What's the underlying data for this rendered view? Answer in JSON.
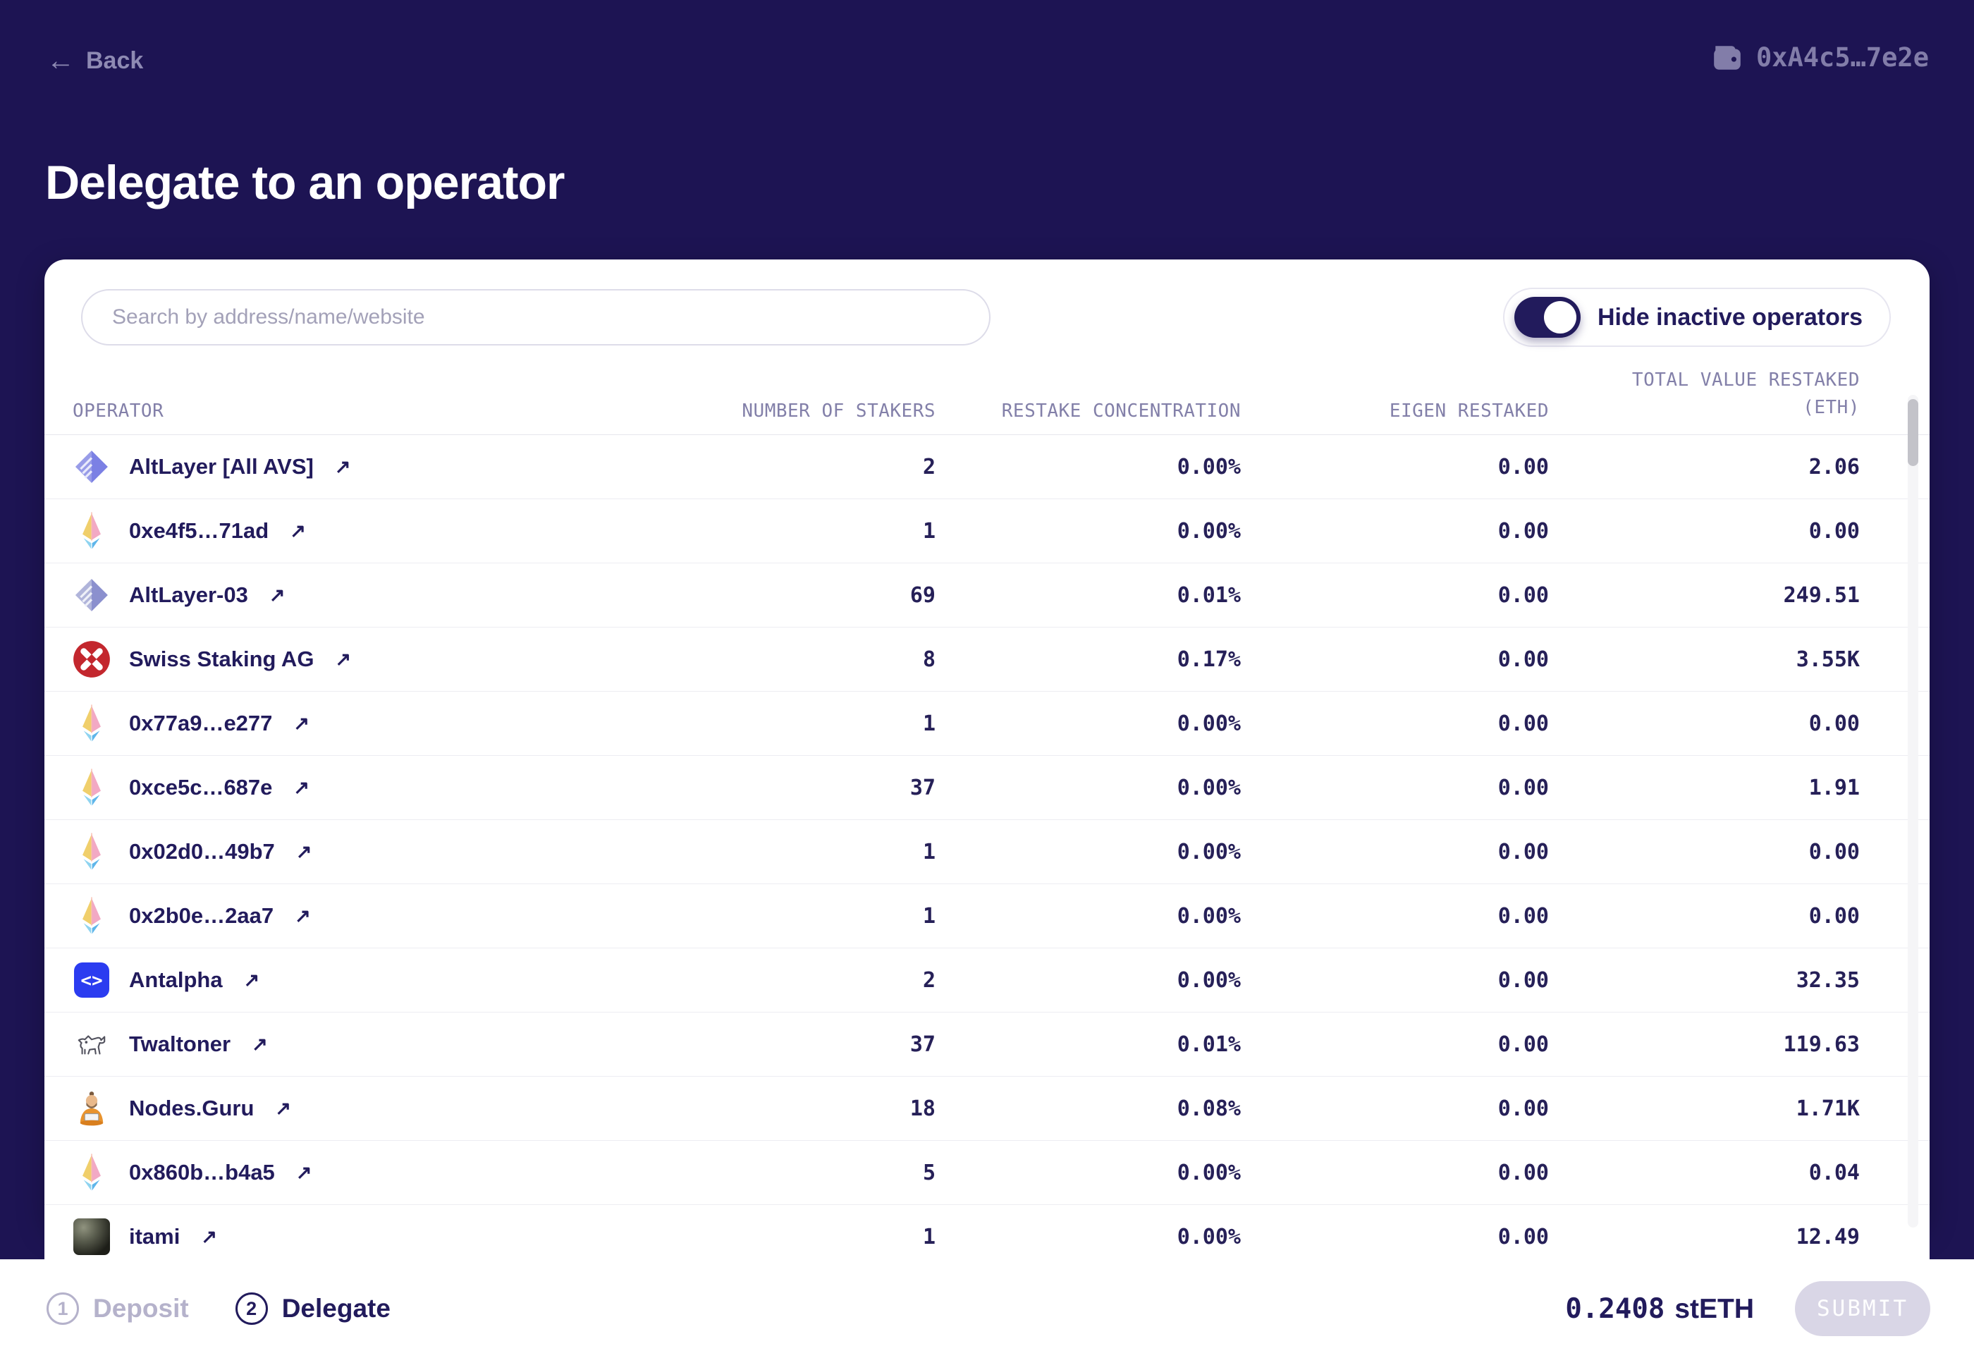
{
  "topbar": {
    "back_label": "Back",
    "wallet_address": "0xA4c5…7e2e"
  },
  "page_title": "Delegate to an operator",
  "search": {
    "placeholder": "Search by address/name/website"
  },
  "toggle": {
    "label": "Hide inactive operators",
    "enabled": true
  },
  "table": {
    "columns": [
      {
        "id": "operator",
        "label": "OPERATOR",
        "align": "left"
      },
      {
        "id": "stakers",
        "label": "NUMBER OF STAKERS",
        "align": "right"
      },
      {
        "id": "concentration",
        "label": "RESTAKE CONCENTRATION",
        "align": "right"
      },
      {
        "id": "eigen",
        "label": "EIGEN RESTAKED",
        "align": "right"
      },
      {
        "id": "total",
        "label": "TOTAL VALUE RESTAKED",
        "sub_label": "(ETH)",
        "align": "right"
      }
    ],
    "rows": [
      {
        "name": "AltLayer [All AVS]",
        "icon": "altlayer-icon",
        "stakers": "2",
        "concentration": "0.00%",
        "eigen": "0.00",
        "total": "2.06"
      },
      {
        "name": "0xe4f5…71ad",
        "icon": "eth-diamond-icon",
        "stakers": "1",
        "concentration": "0.00%",
        "eigen": "0.00",
        "total": "0.00"
      },
      {
        "name": "AltLayer-03",
        "icon": "altlayer-muted-icon",
        "stakers": "69",
        "concentration": "0.01%",
        "eigen": "0.00",
        "total": "249.51"
      },
      {
        "name": "Swiss Staking AG",
        "icon": "swiss-staking-icon",
        "stakers": "8",
        "concentration": "0.17%",
        "eigen": "0.00",
        "total": "3.55K"
      },
      {
        "name": "0x77a9…e277",
        "icon": "eth-diamond-icon",
        "stakers": "1",
        "concentration": "0.00%",
        "eigen": "0.00",
        "total": "0.00"
      },
      {
        "name": "0xce5c…687e",
        "icon": "eth-diamond-icon",
        "stakers": "37",
        "concentration": "0.00%",
        "eigen": "0.00",
        "total": "1.91"
      },
      {
        "name": "0x02d0…49b7",
        "icon": "eth-diamond-icon",
        "stakers": "1",
        "concentration": "0.00%",
        "eigen": "0.00",
        "total": "0.00"
      },
      {
        "name": "0x2b0e…2aa7",
        "icon": "eth-diamond-icon",
        "stakers": "1",
        "concentration": "0.00%",
        "eigen": "0.00",
        "total": "0.00"
      },
      {
        "name": "Antalpha",
        "icon": "antalpha-icon",
        "stakers": "2",
        "concentration": "0.00%",
        "eigen": "0.00",
        "total": "32.35"
      },
      {
        "name": "Twaltoner",
        "icon": "dog-lineart-icon",
        "stakers": "37",
        "concentration": "0.01%",
        "eigen": "0.00",
        "total": "119.63"
      },
      {
        "name": "Nodes.Guru",
        "icon": "guru-icon",
        "stakers": "18",
        "concentration": "0.08%",
        "eigen": "0.00",
        "total": "1.71K"
      },
      {
        "name": "0x860b…b4a5",
        "icon": "eth-diamond-icon",
        "stakers": "5",
        "concentration": "0.00%",
        "eigen": "0.00",
        "total": "0.04"
      },
      {
        "name": "itami",
        "icon": "photo-avatar-icon",
        "stakers": "1",
        "concentration": "0.00%",
        "eigen": "0.00",
        "total": "12.49"
      }
    ]
  },
  "footer": {
    "steps": [
      {
        "number": "1",
        "label": "Deposit",
        "active": false
      },
      {
        "number": "2",
        "label": "Delegate",
        "active": true
      }
    ],
    "balance_amount": "0.2408",
    "balance_token": "stETH",
    "submit_label": "SUBMIT"
  },
  "colors": {
    "background": "#1d1453",
    "accent_navy": "#221b5c",
    "muted_on_dark": "#827da9",
    "antalpha_blue": "#2b3cf0",
    "swiss_red": "#c3272e",
    "altlayer_purple": "#7b80e4",
    "disabled_button": "#d9d6e6"
  }
}
